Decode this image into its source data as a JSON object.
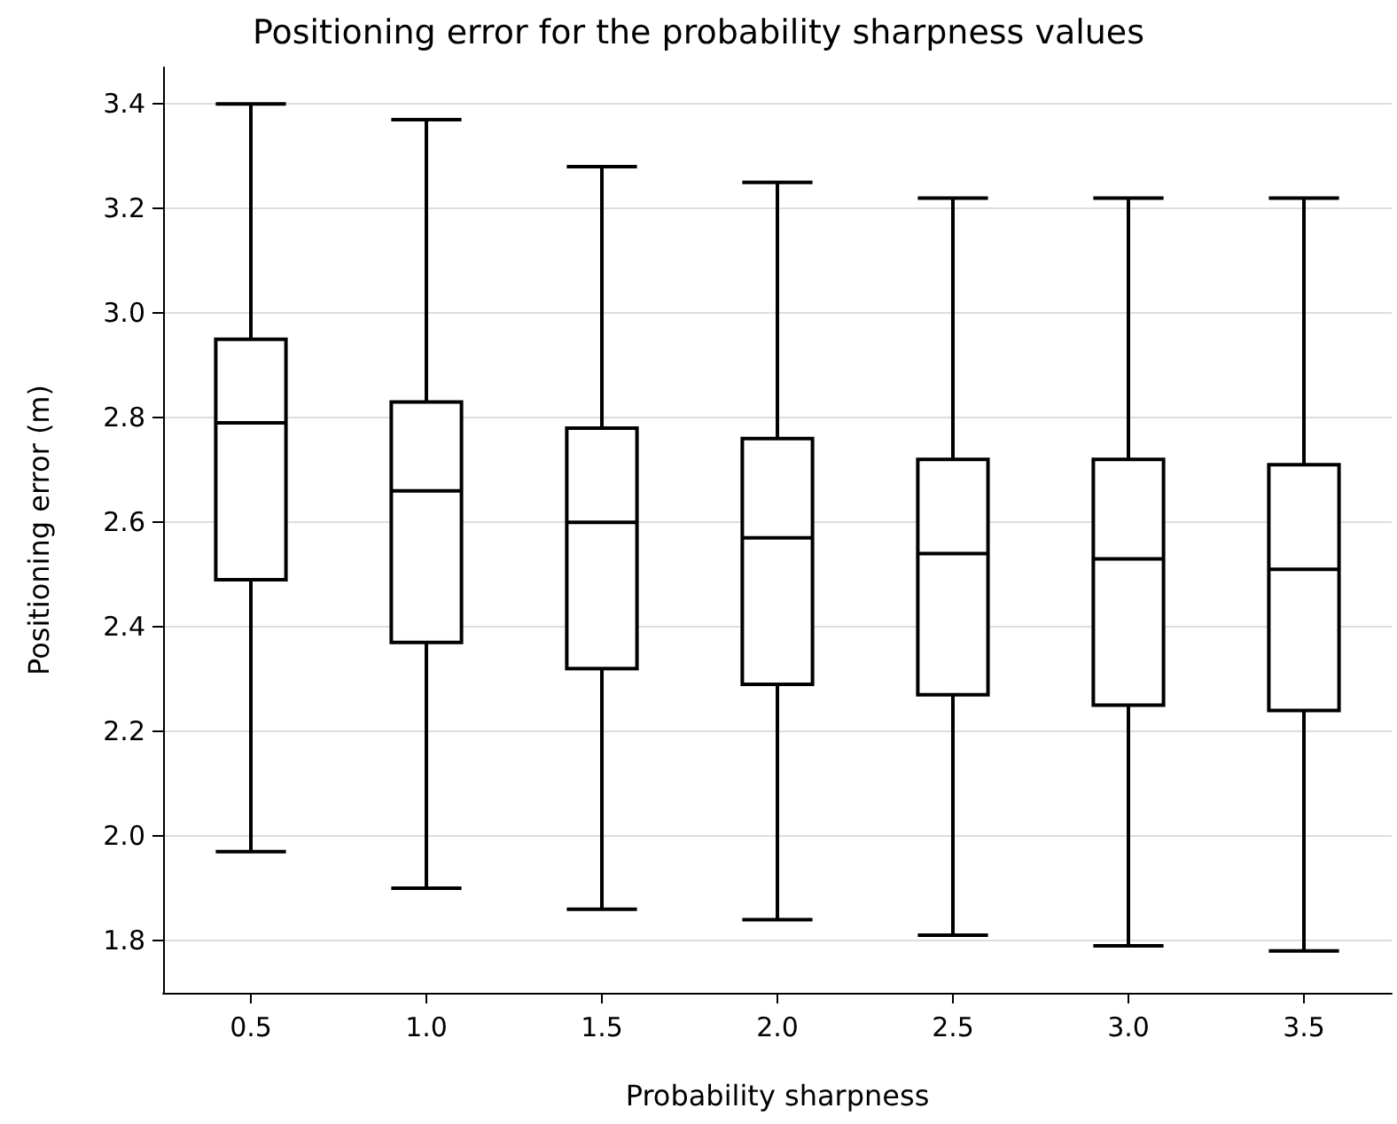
{
  "chart_data": {
    "type": "box",
    "title": "Positioning error for the probability sharpness values",
    "xlabel": "Probability sharpness",
    "ylabel": "Positioning error (m)",
    "categories": [
      "0.5",
      "1.0",
      "1.5",
      "2.0",
      "2.5",
      "3.0",
      "3.5"
    ],
    "boxes": [
      {
        "low": 1.97,
        "q1": 2.49,
        "median": 2.79,
        "q3": 2.95,
        "high": 3.4
      },
      {
        "low": 1.9,
        "q1": 2.37,
        "median": 2.66,
        "q3": 2.83,
        "high": 3.37
      },
      {
        "low": 1.86,
        "q1": 2.32,
        "median": 2.6,
        "q3": 2.78,
        "high": 3.28
      },
      {
        "low": 1.84,
        "q1": 2.29,
        "median": 2.57,
        "q3": 2.76,
        "high": 3.25
      },
      {
        "low": 1.81,
        "q1": 2.27,
        "median": 2.54,
        "q3": 2.72,
        "high": 3.22
      },
      {
        "low": 1.79,
        "q1": 2.25,
        "median": 2.53,
        "q3": 2.72,
        "high": 3.22
      },
      {
        "low": 1.78,
        "q1": 2.24,
        "median": 2.51,
        "q3": 2.71,
        "high": 3.22
      }
    ],
    "color": "#000000",
    "ylim": [
      1.7,
      3.47
    ],
    "yticks": [
      1.8,
      {
        "value": 2,
        "label": "2.0"
      },
      2.2,
      2.4,
      2.6,
      2.8,
      {
        "value": 3,
        "label": "3.0"
      },
      3.2,
      3.4
    ],
    "grid": "y"
  }
}
